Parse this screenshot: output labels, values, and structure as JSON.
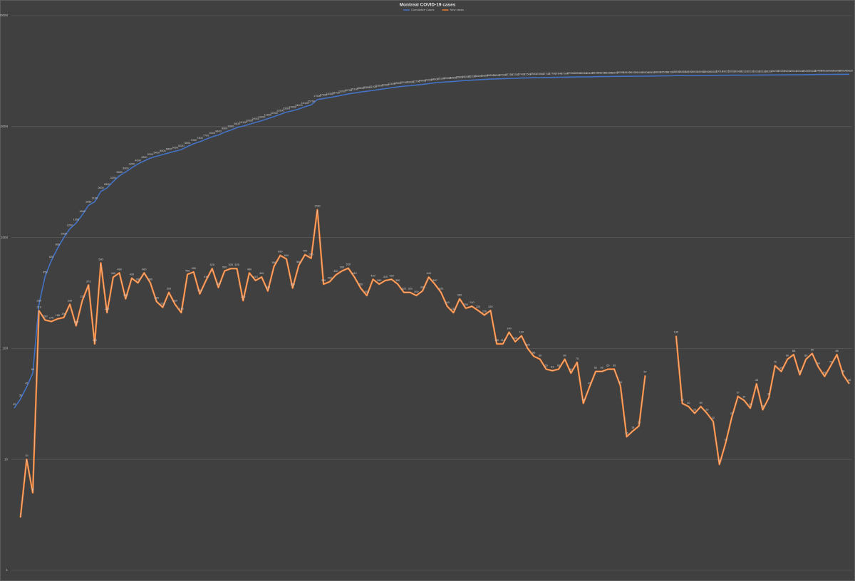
{
  "chart_data": {
    "type": "line",
    "title": "Montreal COVID-19 cases",
    "categories": [
      null,
      null,
      null,
      null,
      null,
      null,
      null,
      null,
      null,
      null,
      null,
      null,
      null,
      null,
      null,
      null,
      null,
      null,
      null,
      null,
      null,
      null,
      null,
      null,
      null,
      null,
      null,
      null,
      null,
      null,
      null,
      null,
      null,
      null,
      null,
      null,
      null,
      null,
      null,
      null,
      null,
      null,
      null,
      null,
      null,
      null,
      null,
      null,
      null,
      null,
      null,
      null,
      null,
      null,
      null,
      null,
      null,
      null,
      null,
      null,
      null,
      null,
      null,
      null,
      null,
      null,
      null,
      null,
      null,
      null,
      null,
      null,
      null,
      null,
      null,
      null,
      null,
      null,
      null,
      null,
      null,
      null,
      null,
      null,
      null,
      null,
      null,
      null,
      null,
      null,
      null,
      null,
      null,
      null,
      null,
      null,
      null,
      null,
      null,
      null,
      null,
      null,
      null,
      null,
      null,
      null,
      null,
      null,
      null,
      null,
      null,
      null,
      null,
      null,
      null,
      null,
      null,
      null,
      null,
      null,
      null,
      null,
      null,
      null,
      null,
      null,
      null,
      null,
      null,
      null,
      null,
      null,
      null,
      null,
      null,
      null
    ],
    "series": [
      {
        "name": "Cumulative Cases",
        "color": "#4472c4",
        "values": [
          29,
          35,
          45,
          60,
          250,
          450,
          620,
          800,
          1000,
          1200,
          1350,
          1600,
          1950,
          2100,
          2600,
          2800,
          3200,
          3600,
          3900,
          4250,
          4600,
          4900,
          5200,
          5400,
          5600,
          5800,
          6000,
          6200,
          6600,
          7000,
          7300,
          7700,
          8100,
          8400,
          8900,
          9300,
          9800,
          10100,
          10500,
          10900,
          11300,
          11800,
          12300,
          12900,
          13500,
          13900,
          14400,
          15100,
          15700,
          17500,
          17900,
          18300,
          18700,
          19200,
          19700,
          20100,
          20500,
          20800,
          21200,
          21600,
          22000,
          22400,
          22800,
          23100,
          23400,
          23700,
          24000,
          24400,
          24800,
          25100,
          25300,
          25500,
          25800,
          26000,
          26200,
          26400,
          26600,
          26800,
          26900,
          27000,
          27150,
          27250,
          27400,
          27500,
          27600,
          27650,
          27700,
          27780,
          27840,
          27900,
          27960,
          28030,
          28060,
          28100,
          28160,
          28220,
          28280,
          28340,
          28390,
          28400,
          28420,
          28440,
          28500,
          28550,
          28600,
          28650,
          28700,
          28830,
          28860,
          28890,
          28920,
          28950,
          28980,
          29000,
          29010,
          29025,
          29050,
          29080,
          29110,
          29130,
          29160,
          29180,
          29200,
          29230,
          29260,
          29280,
          29310,
          29340,
          29390,
          29430,
          29480,
          29520,
          29560,
          29580,
          29600,
          29620
        ]
      },
      {
        "name": "New cases",
        "color": "#ed7d31",
        "values": [
          null,
          3,
          10,
          5,
          219,
          180,
          175,
          185,
          190,
          250,
          160,
          270,
          373,
          110,
          590,
          210,
          440,
          480,
          280,
          430,
          390,
          480,
          390,
          265,
          235,
          320,
          250,
          210,
          465,
          490,
          310,
          410,
          525,
          355,
          500,
          525,
          525,
          270,
          480,
          410,
          440,
          330,
          550,
          690,
          640,
          350,
          560,
          700,
          650,
          1780,
          380,
          400,
          460,
          500,
          530,
          440,
          350,
          300,
          420,
          380,
          410,
          420,
          380,
          320,
          320,
          300,
          330,
          440,
          380,
          320,
          240,
          210,
          280,
          230,
          240,
          220,
          200,
          220,
          110,
          110,
          140,
          115,
          130,
          100,
          85,
          80,
          65,
          63,
          65,
          80,
          60,
          75,
          32,
          45,
          62,
          62,
          65,
          65,
          46,
          16,
          18,
          20,
          57,
          null,
          null,
          null,
          null,
          130,
          32,
          30,
          26,
          30,
          26,
          22,
          9,
          14,
          24,
          37,
          34,
          29,
          48,
          28,
          36,
          70,
          62,
          80,
          88,
          58,
          80,
          90,
          68,
          56,
          70,
          88,
          58,
          48
        ]
      }
    ],
    "ylim": [
      1,
      100000
    ],
    "yticks": [
      1,
      10,
      100,
      1000,
      10000,
      100000
    ],
    "log": true,
    "grid": true,
    "legend": "top"
  }
}
